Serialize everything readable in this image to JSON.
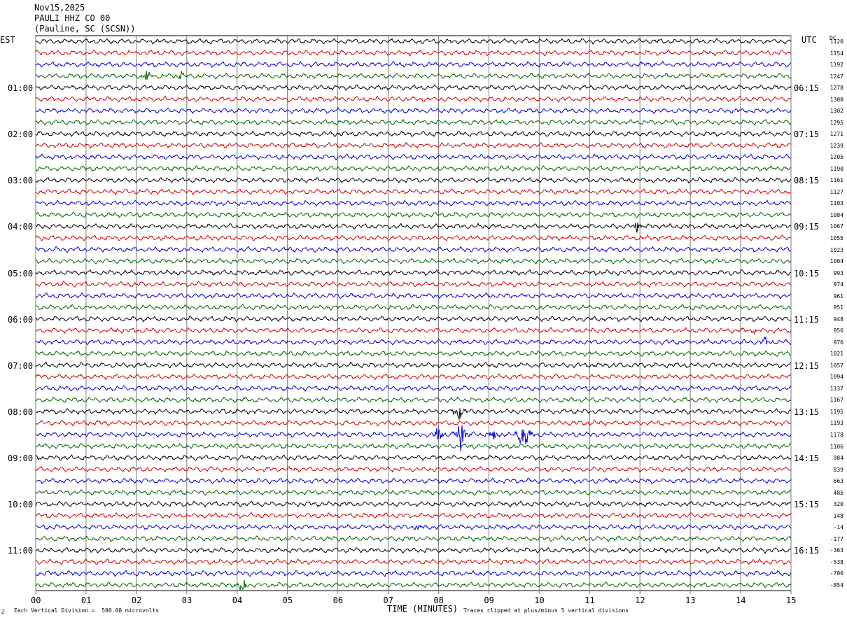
{
  "header": {
    "date": "Nov15,2025",
    "station": "PAULI HHZ CO 00",
    "location": "(Pauline, SC (SCSN))"
  },
  "left_tz": "EST",
  "right_tz": "UTC",
  "dc_header": "DC",
  "footer": {
    "scale_note": "Each Vertical Division =  500.00 microvolts",
    "xlabel": "TIME (MINUTES)",
    "clip_note": "Traces clipped at plus/minus 5 vertical divisions",
    "corner_mark": "ℤ"
  },
  "chart_data": {
    "type": "line",
    "title": "PAULI HHZ CO 00",
    "xlabel": "TIME (MINUTES)",
    "x_ticks": [
      "00",
      "01",
      "02",
      "03",
      "04",
      "05",
      "06",
      "07",
      "08",
      "09",
      "10",
      "11",
      "12",
      "13",
      "14",
      "15"
    ],
    "xlim": [
      0,
      15
    ],
    "trace_count": 48,
    "trace_colors": [
      "#000000",
      "#d40000",
      "#0000d4",
      "#006400"
    ],
    "left_hour_labels": [
      "01:00",
      "02:00",
      "03:00",
      "04:00",
      "05:00",
      "06:00",
      "07:00",
      "08:00",
      "09:00",
      "10:00",
      "11:00"
    ],
    "right_hour_labels": [
      "06:15",
      "07:15",
      "08:15",
      "09:15",
      "10:15",
      "11:15",
      "12:15",
      "13:15",
      "14:15",
      "15:15",
      "16:15"
    ],
    "dc_offsets": [
      "1120",
      "1154",
      "1192",
      "1247",
      "1278",
      "1300",
      "1302",
      "1295",
      "1271",
      "1239",
      "1205",
      "1190",
      "1161",
      "1127",
      "1103",
      "1084",
      "1067",
      "1055",
      "1023",
      "1004",
      "993",
      "974",
      "961",
      "951",
      "948",
      "956",
      "976",
      "1021",
      "1057",
      "1094",
      "1137",
      "1167",
      "1195",
      "1193",
      "1178",
      "1106",
      "984",
      "839",
      "663",
      "485",
      "320",
      "148",
      "-14",
      "-177",
      "-363",
      "-538",
      "-700",
      "-854"
    ],
    "events": [
      {
        "trace": 32,
        "minute": 8.4,
        "amplitude": 14
      },
      {
        "trace": 34,
        "minute": 8.45,
        "amplitude": 30
      },
      {
        "trace": 34,
        "minute": 9.7,
        "amplitude": 34
      },
      {
        "trace": 34,
        "minute": 8.0,
        "amplitude": 16
      },
      {
        "trace": 34,
        "minute": 9.1,
        "amplitude": 14
      },
      {
        "trace": 47,
        "minute": 4.1,
        "amplitude": 16
      },
      {
        "trace": 16,
        "minute": 11.95,
        "amplitude": 9
      },
      {
        "trace": 3,
        "minute": 2.2,
        "amplitude": 8
      },
      {
        "trace": 3,
        "minute": 2.9,
        "amplitude": 9
      },
      {
        "trace": 26,
        "minute": 14.5,
        "amplitude": 7
      },
      {
        "trace": 42,
        "minute": 7.6,
        "amplitude": 6
      },
      {
        "trace": 25,
        "minute": 14.3,
        "amplitude": 6
      }
    ]
  }
}
